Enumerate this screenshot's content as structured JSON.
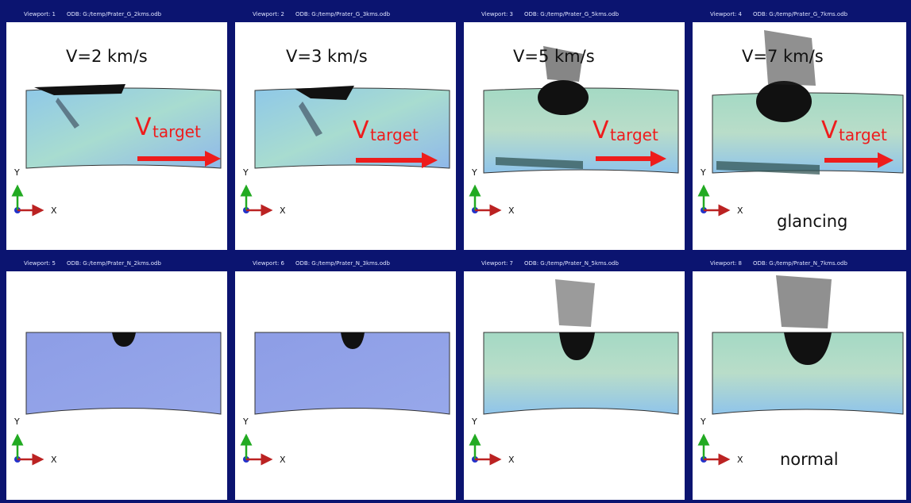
{
  "rows": [
    {
      "viewports": [
        {
          "title": "Viewport: 1",
          "odb": "ODB: G:/temp/Prater_G_2kms.odb",
          "velocity": "V=2 km/s"
        },
        {
          "title": "Viewport: 2",
          "odb": "ODB: G:/temp/Prater_G_3kms.odb",
          "velocity": "V=3 km/s"
        },
        {
          "title": "Viewport: 3",
          "odb": "ODB: G:/temp/Prater_G_5kms.odb",
          "velocity": "V=5 km/s"
        },
        {
          "title": "Viewport: 4",
          "odb": "ODB: G:/temp/Prater_G_7kms.odb",
          "velocity": "V=7 km/s"
        }
      ],
      "label": "glancing"
    },
    {
      "viewports": [
        {
          "title": "Viewport: 5",
          "odb": "ODB: G:/temp/Prater_N_2kms.odb"
        },
        {
          "title": "Viewport: 6",
          "odb": "ODB: G:/temp/Prater_N_3kms.odb"
        },
        {
          "title": "Viewport: 7",
          "odb": "ODB: G:/temp/Prater_N_5kms.odb"
        },
        {
          "title": "Viewport: 8",
          "odb": "ODB: G:/temp/Prater_N_7kms.odb"
        }
      ],
      "label": "normal"
    }
  ],
  "velocity_arrow": {
    "symbol": "V",
    "subscript": "target"
  },
  "axes": {
    "y": "Y",
    "x": "X"
  }
}
